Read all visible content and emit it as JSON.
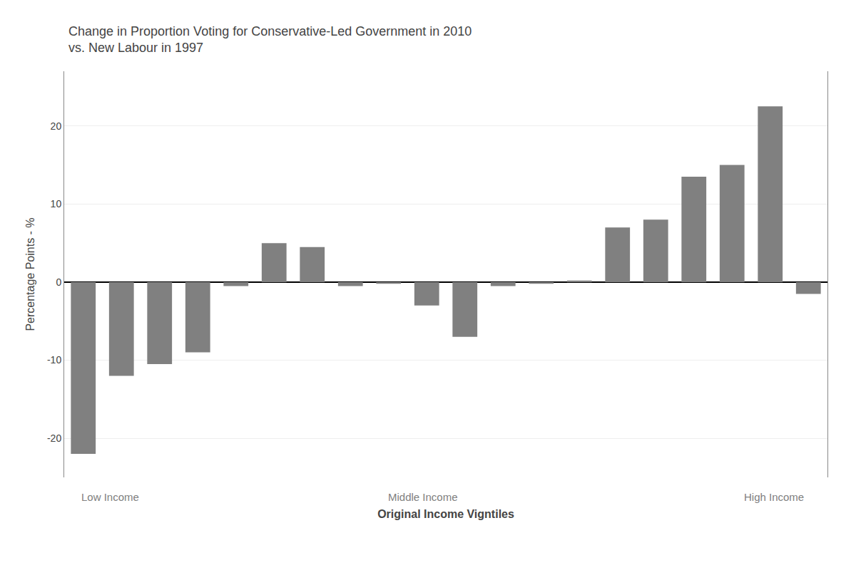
{
  "chart_data": {
    "type": "bar",
    "title": "Change in Proportion Voting for Conservative-Led Government in 2010\nvs. New Labour in 1997",
    "xlabel": "Original Income Vigntiles",
    "ylabel": "Percentage Points - %",
    "annotations": [
      "Low Income",
      "Middle Income",
      "High Income"
    ],
    "categories": [
      null,
      null,
      null,
      null,
      null,
      null,
      null,
      null,
      null,
      null,
      null,
      null,
      null,
      null,
      null,
      null,
      null,
      null,
      null,
      null
    ],
    "values": [
      -22,
      -12,
      -10.5,
      -9,
      -0.5,
      5,
      4.5,
      -0.5,
      -0.2,
      -3,
      -7,
      -0.5,
      -0.2,
      0.2,
      7,
      8,
      13.5,
      15,
      22.5,
      -1.5
    ],
    "color": "#808080",
    "ylim": [
      -25,
      27
    ],
    "yticks": [
      -20,
      -10,
      0,
      10,
      20
    ],
    "grid": true,
    "tick_labels": "y"
  }
}
